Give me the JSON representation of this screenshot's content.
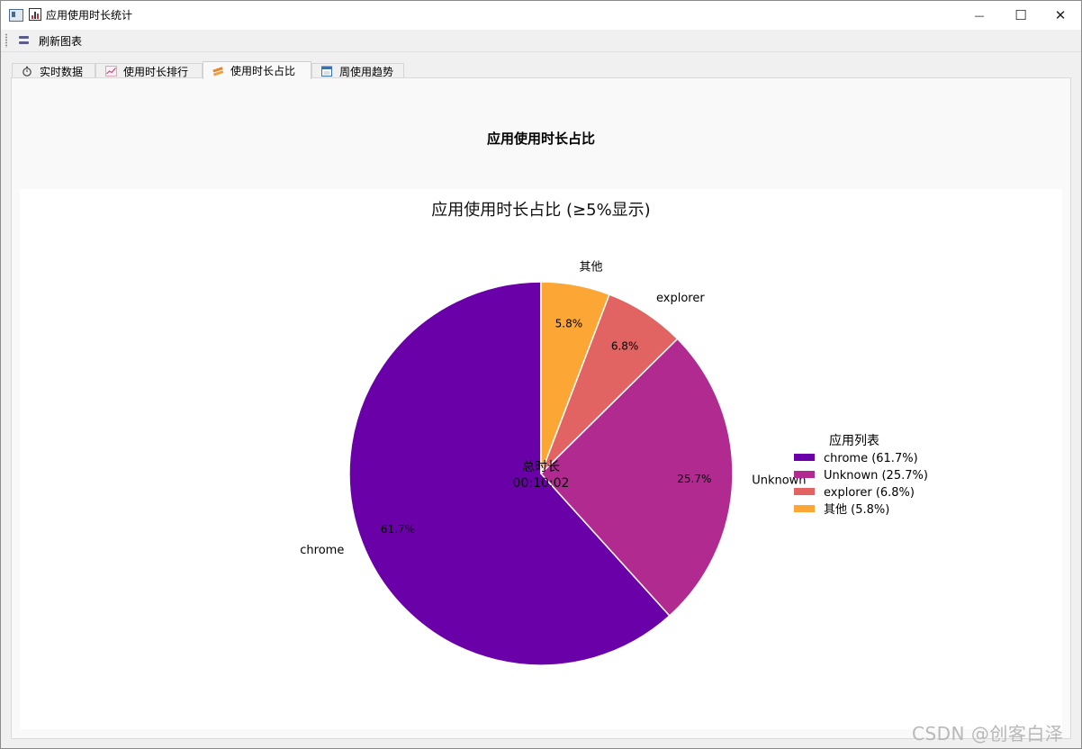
{
  "window": {
    "title": "应用使用时长统计",
    "minimize_glyph": "—",
    "maximize_glyph": "☐",
    "close_glyph": "✕"
  },
  "toolbar": {
    "refresh_label": "刷新图表"
  },
  "tabs": [
    {
      "label": "实时数据",
      "icon": "stopwatch-icon"
    },
    {
      "label": "使用时长排行",
      "icon": "trend-chart-icon"
    },
    {
      "label": "使用时长占比",
      "icon": "pie-chart-icon",
      "active": true
    },
    {
      "label": "周使用趋势",
      "icon": "calendar-icon"
    }
  ],
  "panel": {
    "title": "应用使用时长占比"
  },
  "chart_data": {
    "type": "pie",
    "title": "应用使用时长占比 (≥5%显示)",
    "center_label": "总时长",
    "center_value": "00:10:02",
    "legend_title": "应用列表",
    "legend_position": "right",
    "slices": [
      {
        "name": "chrome",
        "value": 61.7,
        "label": "61.7%",
        "legend": "chrome (61.7%)",
        "color": "#6a00a8"
      },
      {
        "name": "Unknown",
        "value": 25.7,
        "label": "25.7%",
        "legend": "Unknown (25.7%)",
        "color": "#b12a90"
      },
      {
        "name": "explorer",
        "value": 6.8,
        "label": "6.8%",
        "legend": "explorer (6.8%)",
        "color": "#e16462"
      },
      {
        "name": "其他",
        "value": 5.8,
        "label": "5.8%",
        "legend": "其他 (5.8%)",
        "color": "#fca636"
      }
    ]
  },
  "watermark": "CSDN @创客白泽"
}
